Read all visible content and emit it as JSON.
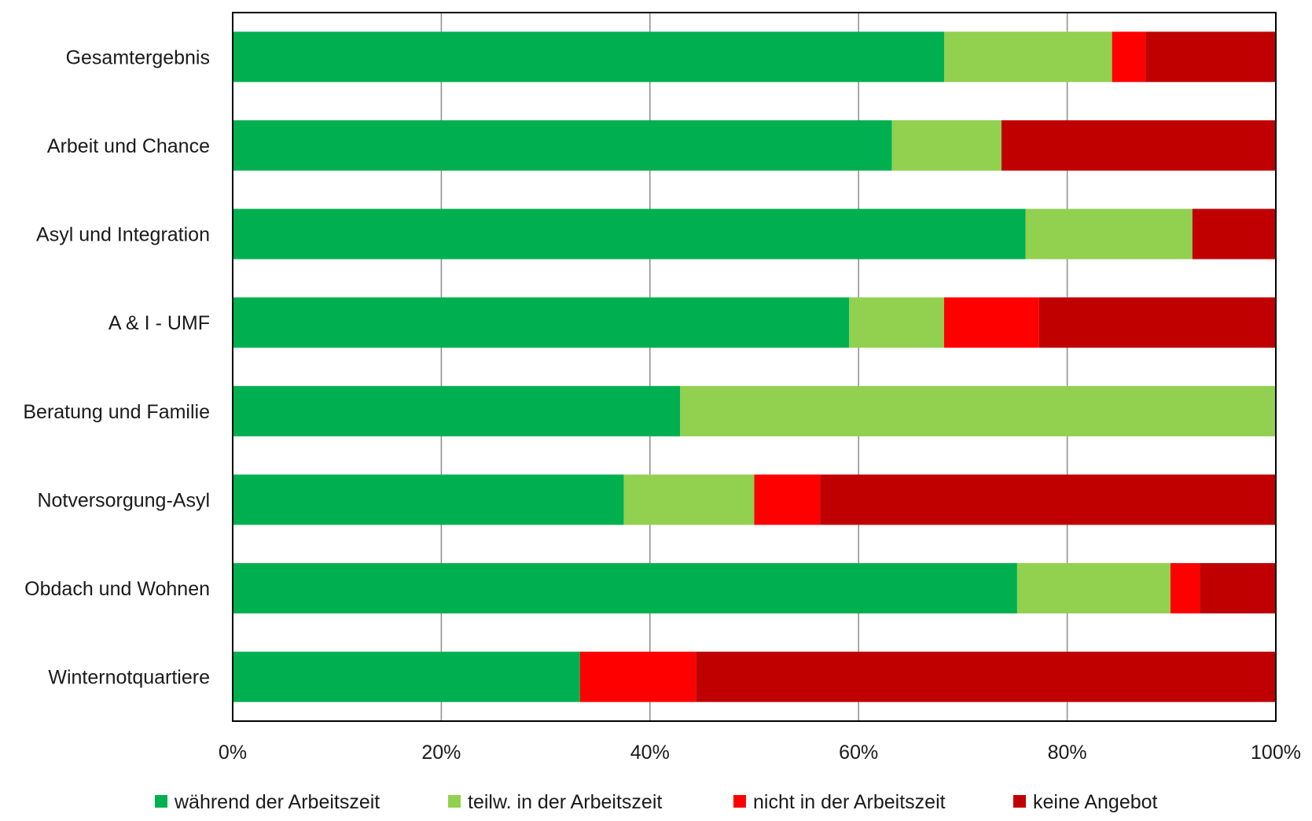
{
  "chart_data": {
    "type": "bar",
    "orientation": "horizontal",
    "stacked": "percent",
    "categories": [
      "Gesamtergebnis",
      "Arbeit und Chance",
      "Asyl und Integration",
      "A & I - UMF",
      "Beratung und Familie",
      "Notversorgung-Asyl",
      "Obdach und Wohnen",
      "Winternotquartiere"
    ],
    "series": [
      {
        "name": "während der Arbeitszeit",
        "color": "#00b050",
        "values": [
          68.2,
          63.2,
          76.0,
          59.1,
          42.9,
          37.5,
          75.2,
          33.3
        ]
      },
      {
        "name": "teilw. in der Arbeitszeit",
        "color": "#92d050",
        "values": [
          16.1,
          10.5,
          16.0,
          9.1,
          57.1,
          12.5,
          14.7,
          0
        ]
      },
      {
        "name": "nicht in der Arbeitszeit",
        "color": "#ff0000",
        "values": [
          3.2,
          0,
          0,
          9.1,
          0,
          6.3,
          2.8,
          11.1
        ]
      },
      {
        "name": "keine Angebot",
        "color": "#c00000",
        "values": [
          12.5,
          26.3,
          8.0,
          22.7,
          0,
          43.7,
          7.3,
          55.6
        ]
      }
    ],
    "xticks": [
      "0%",
      "20%",
      "40%",
      "60%",
      "80%",
      "100%"
    ],
    "xlim": [
      0,
      100
    ],
    "grid": "vertical",
    "legend_position": "bottom"
  }
}
